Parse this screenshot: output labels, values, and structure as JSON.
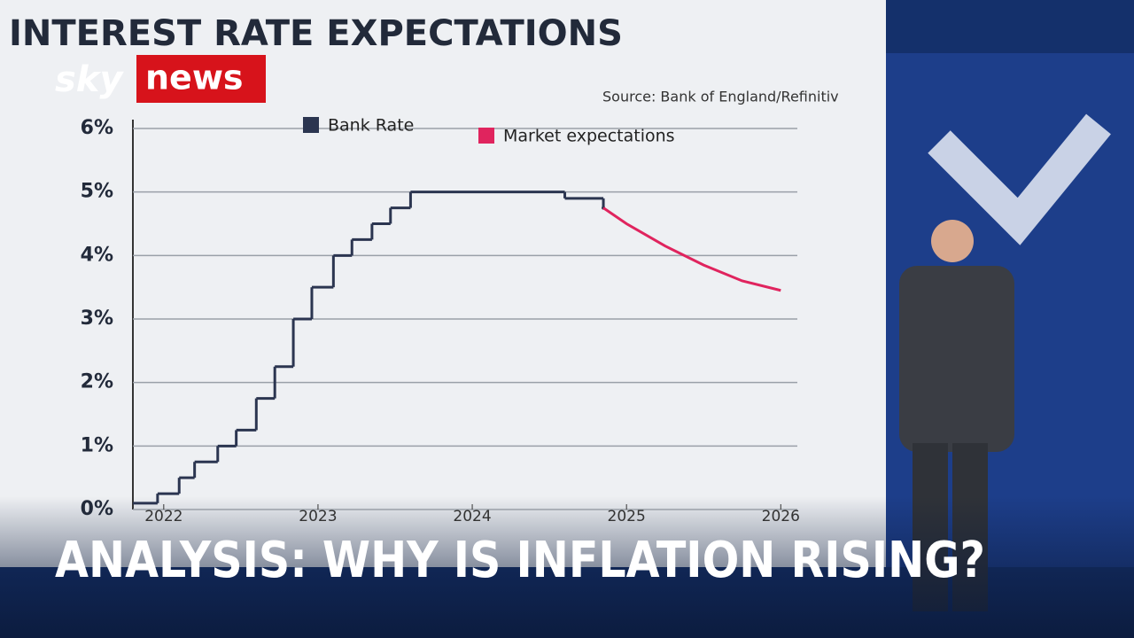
{
  "logo": {
    "sky": "sky",
    "news": "news"
  },
  "banner": "ANALYSIS: WHY IS INFLATION RISING?",
  "chart_data": {
    "type": "step-line",
    "title": "INTEREST RATE EXPECTATIONS",
    "source": "Source:  Bank of England/Refinitiv",
    "xlim": [
      2021.8,
      2026.05
    ],
    "xticks": [
      2022,
      2023,
      2024,
      2025,
      2026
    ],
    "ylim": [
      0,
      6
    ],
    "yticks": [
      {
        "value": 0,
        "label": "0%"
      },
      {
        "value": 1,
        "label": "1%"
      },
      {
        "value": 2,
        "label": "2%"
      },
      {
        "value": 3,
        "label": "3%"
      },
      {
        "value": 4,
        "label": "4%"
      },
      {
        "value": 5,
        "label": "5%"
      },
      {
        "value": 6,
        "label": "6%"
      }
    ],
    "grid": true,
    "series": [
      {
        "name": "Bank Rate",
        "color": "#2b3550",
        "x": [
          2021.8,
          2021.96,
          2022.1,
          2022.2,
          2022.35,
          2022.47,
          2022.6,
          2022.72,
          2022.84,
          2022.96,
          2023.1,
          2023.22,
          2023.35,
          2023.47,
          2023.6,
          2024.6,
          2024.85
        ],
        "values": [
          0.1,
          0.25,
          0.5,
          0.75,
          1.0,
          1.25,
          1.75,
          2.25,
          3.0,
          3.5,
          4.0,
          4.25,
          4.5,
          4.75,
          5.0,
          4.9,
          4.75
        ]
      },
      {
        "name": "Market expectations",
        "color": "#e0245e",
        "x": [
          2024.85,
          2025.0,
          2025.25,
          2025.5,
          2025.75,
          2026.0
        ],
        "values": [
          4.75,
          4.5,
          4.15,
          3.85,
          3.6,
          3.45
        ]
      }
    ]
  }
}
